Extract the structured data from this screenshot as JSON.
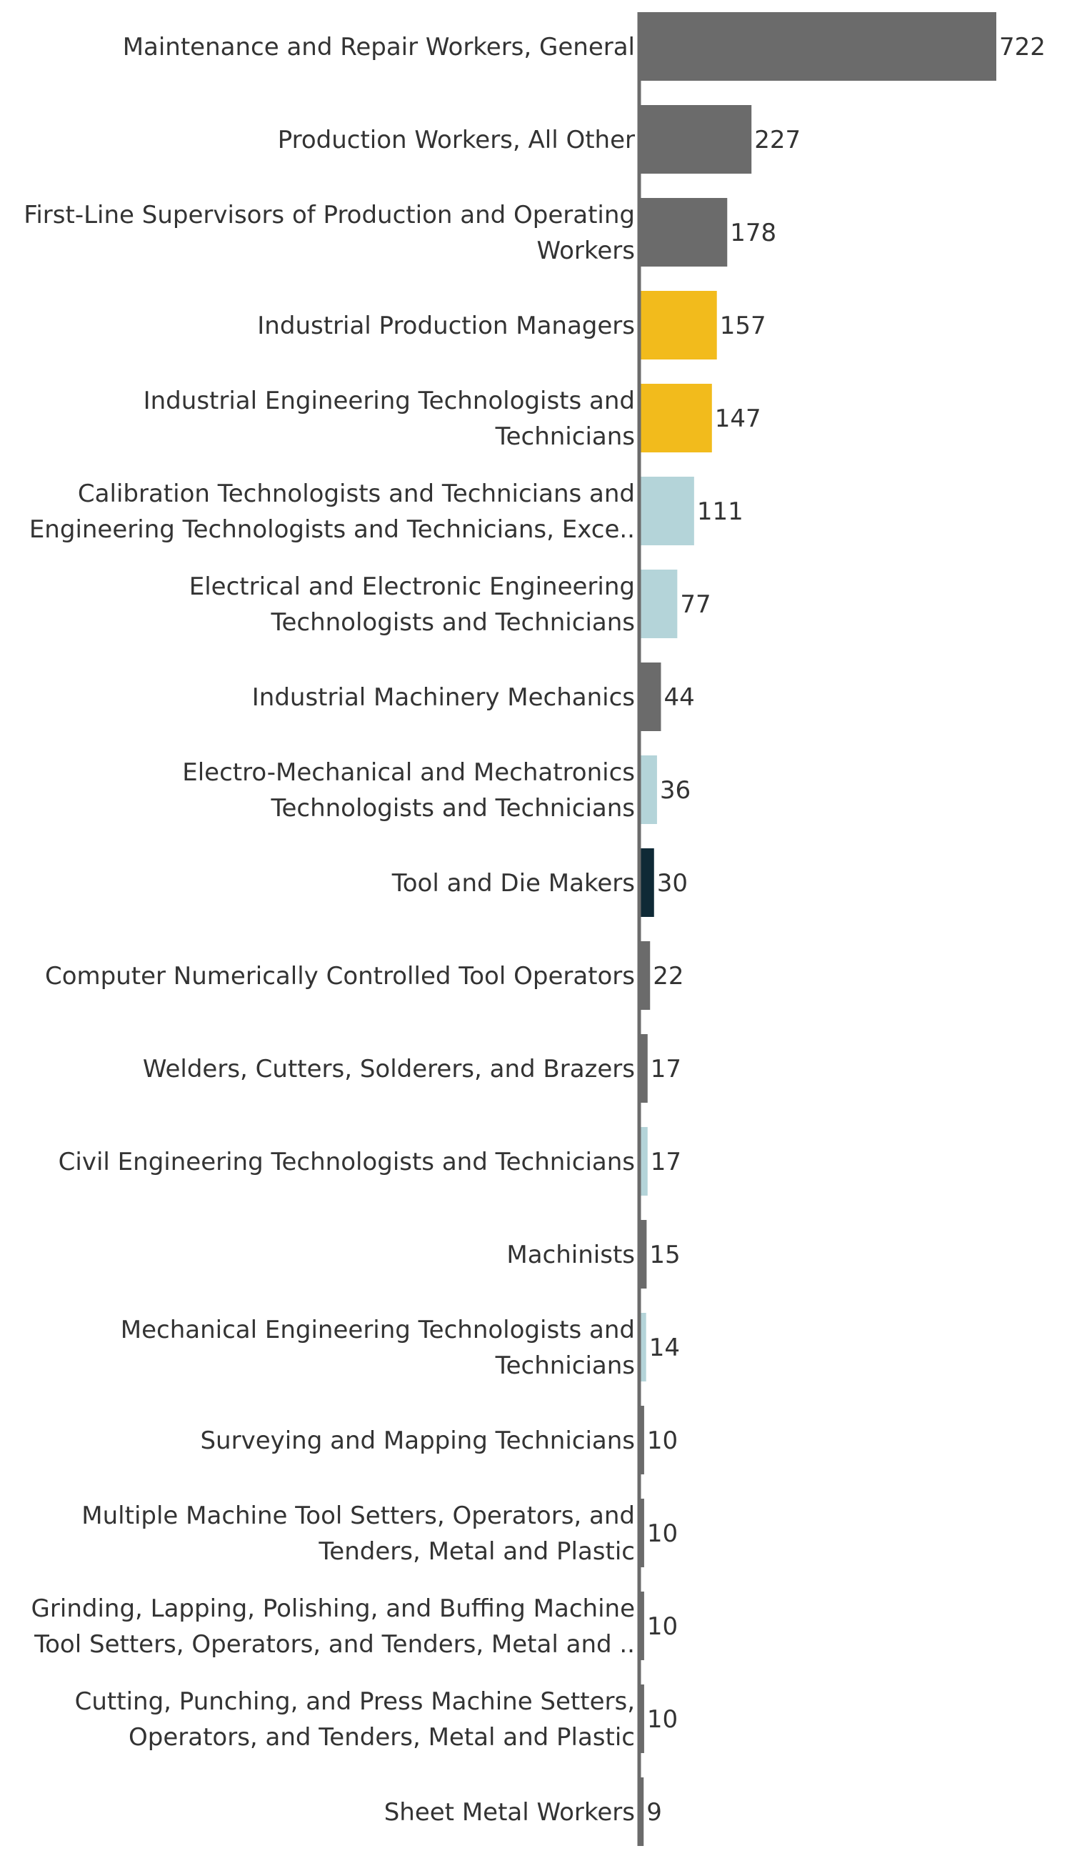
{
  "chart_data": {
    "type": "bar",
    "orientation": "horizontal",
    "title": "",
    "xlabel": "",
    "ylabel": "",
    "grid": false,
    "legend": "none",
    "xlim": [
      0,
      722
    ],
    "colors": {
      "gray": "#6b6b6b",
      "gold": "#f2bb1c",
      "lightblue": "#b4d4d9",
      "navy": "#0f2a36",
      "axis": "#6b6b6b",
      "label": "#333333"
    },
    "categories": [
      {
        "lines": [
          "Maintenance and Repair Workers, General"
        ],
        "value": 722,
        "color": "gray"
      },
      {
        "lines": [
          "Production Workers, All Other"
        ],
        "value": 227,
        "color": "gray"
      },
      {
        "lines": [
          "First-Line Supervisors of Production and Operating",
          "Workers"
        ],
        "value": 178,
        "color": "gray"
      },
      {
        "lines": [
          "Industrial Production Managers"
        ],
        "value": 157,
        "color": "gold"
      },
      {
        "lines": [
          "Industrial Engineering Technologists and",
          "Technicians"
        ],
        "value": 147,
        "color": "gold"
      },
      {
        "lines": [
          "Calibration Technologists and Technicians and",
          "Engineering Technologists and Technicians, Exce.."
        ],
        "value": 111,
        "color": "lightblue"
      },
      {
        "lines": [
          "Electrical and Electronic Engineering",
          "Technologists and Technicians"
        ],
        "value": 77,
        "color": "lightblue"
      },
      {
        "lines": [
          "Industrial Machinery Mechanics"
        ],
        "value": 44,
        "color": "gray"
      },
      {
        "lines": [
          "Electro-Mechanical and Mechatronics",
          "Technologists and Technicians"
        ],
        "value": 36,
        "color": "lightblue"
      },
      {
        "lines": [
          "Tool and Die Makers"
        ],
        "value": 30,
        "color": "navy"
      },
      {
        "lines": [
          "Computer Numerically Controlled Tool Operators"
        ],
        "value": 22,
        "color": "gray"
      },
      {
        "lines": [
          "Welders, Cutters, Solderers, and Brazers"
        ],
        "value": 17,
        "color": "gray"
      },
      {
        "lines": [
          "Civil Engineering Technologists and Technicians"
        ],
        "value": 17,
        "color": "lightblue"
      },
      {
        "lines": [
          "Machinists"
        ],
        "value": 15,
        "color": "gray"
      },
      {
        "lines": [
          "Mechanical Engineering Technologists and",
          "Technicians"
        ],
        "value": 14,
        "color": "lightblue"
      },
      {
        "lines": [
          "Surveying and Mapping Technicians"
        ],
        "value": 10,
        "color": "gray"
      },
      {
        "lines": [
          "Multiple Machine Tool Setters, Operators, and",
          "Tenders, Metal and Plastic"
        ],
        "value": 10,
        "color": "gray"
      },
      {
        "lines": [
          "Grinding, Lapping, Polishing, and Buffing Machine",
          "Tool Setters, Operators, and Tenders, Metal and .."
        ],
        "value": 10,
        "color": "gray"
      },
      {
        "lines": [
          "Cutting, Punching, and Press Machine Setters,",
          "Operators, and Tenders, Metal and Plastic"
        ],
        "value": 10,
        "color": "gray"
      },
      {
        "lines": [
          "Sheet Metal Workers"
        ],
        "value": 9,
        "color": "gray"
      }
    ]
  }
}
